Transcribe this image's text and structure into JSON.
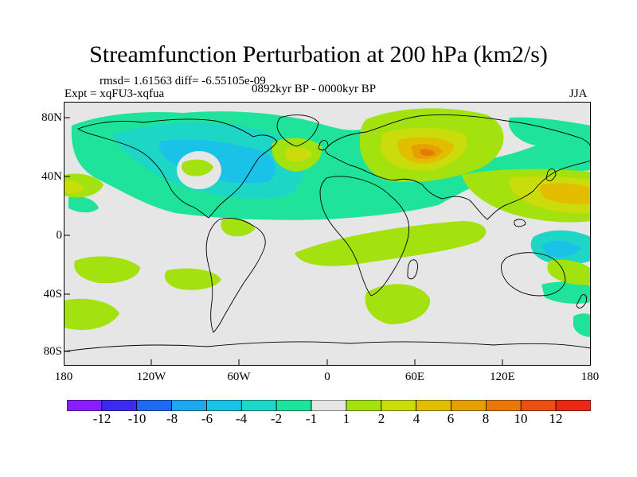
{
  "title": "Streamfunction Perturbation at 200 hPa (km2/s)",
  "stats": "rmsd= 1.61563 diff= -6.55105e-09",
  "experiment": "Expt = xqFU3-xqfua",
  "period": "0892kyr BP - 0000kyr BP",
  "season": "JJA",
  "map": {
    "lat_ticks": [
      "80N",
      "40N",
      "0",
      "40S",
      "80S"
    ],
    "lon_ticks": [
      "180",
      "120W",
      "60W",
      "0",
      "60E",
      "120E",
      "180"
    ],
    "background_color": "#e6e6e6"
  },
  "colorbar": {
    "colors": [
      "#8a1eff",
      "#3b2bf0",
      "#1f6af0",
      "#1fa6f0",
      "#19c2e6",
      "#1dd6c6",
      "#1fe39a",
      "#e6e6e6",
      "#a3e20e",
      "#cbdc0b",
      "#e2bd00",
      "#e6a000",
      "#e8780a",
      "#ea5010",
      "#e82a12"
    ],
    "labels": [
      "-12",
      "-10",
      "-8",
      "-6",
      "-4",
      "-2",
      "-1",
      "1",
      "2",
      "4",
      "6",
      "8",
      "10",
      "12"
    ]
  }
}
